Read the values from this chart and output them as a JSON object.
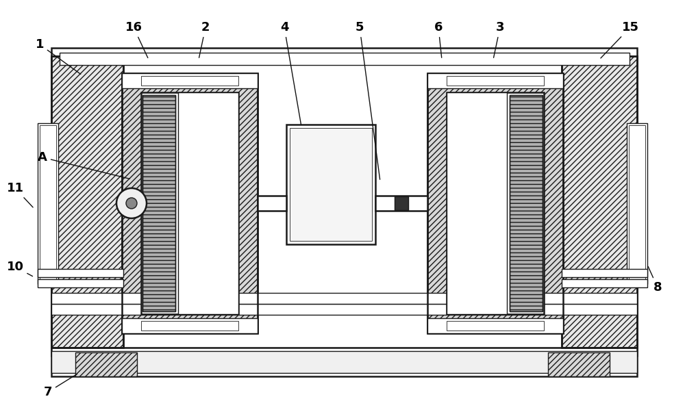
{
  "bg_color": "#ffffff",
  "line_color": "#1a1a1a",
  "label_color": "#000000",
  "fig_width": 10.0,
  "fig_height": 6.05,
  "label_fontsize": 13
}
